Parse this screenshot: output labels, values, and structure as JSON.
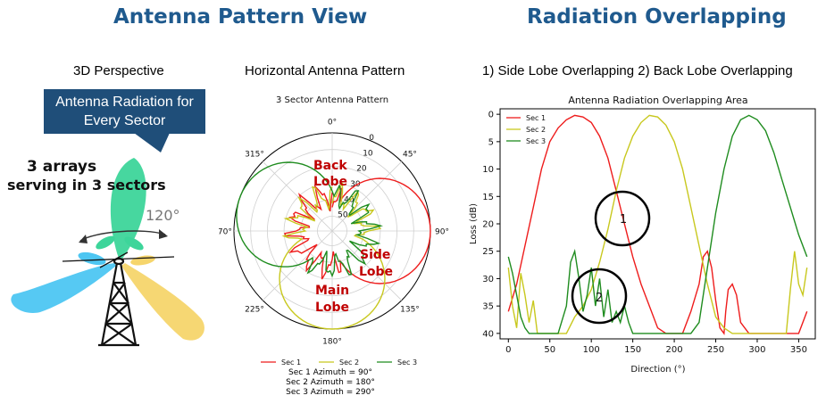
{
  "left_panel": {
    "heading": "Antenna Pattern View",
    "perspective_title": "3D Perspective",
    "callout_line1": "Antenna Radiation for",
    "callout_line2": "Every Sector",
    "arrays_line1": "3 arrays",
    "arrays_line2": "serving in 3 sectors",
    "angle_label": "120°",
    "colors": {
      "sector_green": "#3dd59a",
      "sector_yellow": "#f6d56b",
      "sector_blue": "#4dc6f2"
    }
  },
  "polar_panel": {
    "subtitle": "Horizontal Antenna Pattern",
    "plot_title": "3 Sector Antenna Pattern",
    "angle_labels": [
      "0°",
      "45°",
      "90°",
      "135°",
      "180°",
      "225°",
      "270°",
      "315°"
    ],
    "radial_labels": [
      "0",
      "10",
      "20",
      "30",
      "40",
      "50"
    ],
    "annotations": {
      "back_lobe_1": "Back",
      "back_lobe_2": "Lobe",
      "side_lobe_1": "Side",
      "side_lobe_2": "Lobe",
      "main_lobe_1": "Main",
      "main_lobe_2": "Lobe"
    },
    "annotation_color": "#c00000",
    "legend": [
      "Sec 1",
      "Sec 2",
      "Sec 3"
    ],
    "azimuth_lines": [
      "Sec 1 Azimuth = 90°",
      "Sec 2 Azimuth = 180°",
      "Sec 3 Azimuth = 290°"
    ]
  },
  "right_panel": {
    "heading": "Radiation Overlapping",
    "subtitle": "1) Side Lobe Overlapping 2) Back Lobe Overlapping",
    "circle_labels": [
      "1",
      "2"
    ]
  },
  "chart_data": {
    "type": "line",
    "title": "Antenna Radiation Overlapping Area",
    "xlabel": "Direction (°)",
    "ylabel": "Loss (dB)",
    "xlim": [
      -10,
      370
    ],
    "ylim": [
      41,
      -1
    ],
    "xticks": [
      0,
      50,
      100,
      150,
      200,
      250,
      300,
      350
    ],
    "yticks": [
      0,
      5,
      10,
      15,
      20,
      25,
      30,
      35,
      40
    ],
    "grid": false,
    "legend_position": "top-left",
    "series": [
      {
        "name": "Sec 1",
        "color": "#ee1c1c",
        "x": [
          0,
          10,
          20,
          30,
          40,
          50,
          60,
          70,
          80,
          90,
          100,
          110,
          120,
          130,
          140,
          150,
          160,
          170,
          180,
          190,
          200,
          210,
          220,
          230,
          235,
          240,
          245,
          250,
          255,
          260,
          262,
          265,
          270,
          275,
          280,
          290,
          300,
          310,
          320,
          330,
          340,
          350,
          360
        ],
        "y": [
          36,
          31,
          24,
          17,
          10,
          5,
          2.5,
          1,
          0.2,
          0.5,
          1.5,
          4,
          8,
          14,
          20,
          26,
          31,
          35,
          39,
          40,
          40,
          40,
          36,
          31,
          26,
          25,
          28,
          34,
          39,
          40,
          36,
          32,
          31,
          33,
          38,
          40,
          40,
          40,
          40,
          40,
          40,
          40,
          36
        ]
      },
      {
        "name": "Sec 2",
        "color": "#c8c81e",
        "x": [
          0,
          5,
          10,
          15,
          20,
          25,
          30,
          35,
          40,
          50,
          60,
          70,
          80,
          90,
          100,
          110,
          120,
          130,
          140,
          150,
          160,
          170,
          180,
          190,
          200,
          210,
          220,
          230,
          240,
          250,
          260,
          270,
          280,
          290,
          300,
          310,
          320,
          330,
          335,
          340,
          345,
          350,
          355,
          360
        ],
        "y": [
          28,
          35,
          39,
          29,
          33,
          38,
          34,
          40,
          40,
          40,
          40,
          40,
          37,
          35,
          32,
          27,
          21,
          14,
          8,
          4,
          1.5,
          0.2,
          0.5,
          2,
          5,
          10,
          17,
          24,
          31,
          37,
          39,
          40,
          40,
          40,
          40,
          40,
          40,
          40,
          40,
          32,
          25,
          31,
          33,
          28
        ]
      },
      {
        "name": "Sec 3",
        "color": "#1f8c1f",
        "x": [
          0,
          5,
          10,
          15,
          20,
          25,
          30,
          40,
          50,
          60,
          70,
          75,
          80,
          85,
          90,
          95,
          100,
          105,
          110,
          115,
          120,
          125,
          130,
          135,
          140,
          145,
          150,
          160,
          180,
          200,
          220,
          230,
          240,
          250,
          260,
          270,
          280,
          290,
          300,
          310,
          320,
          330,
          340,
          350,
          360
        ],
        "y": [
          26,
          29,
          33,
          37,
          39,
          40,
          40,
          40,
          40,
          40,
          35,
          27,
          25,
          30,
          36,
          33,
          28,
          35,
          30,
          37,
          32,
          38,
          36,
          38,
          35,
          38,
          40,
          40,
          40,
          40,
          40,
          38,
          28,
          18,
          10,
          4,
          1,
          0.2,
          1,
          3,
          7,
          12,
          17,
          22,
          26
        ]
      }
    ]
  }
}
